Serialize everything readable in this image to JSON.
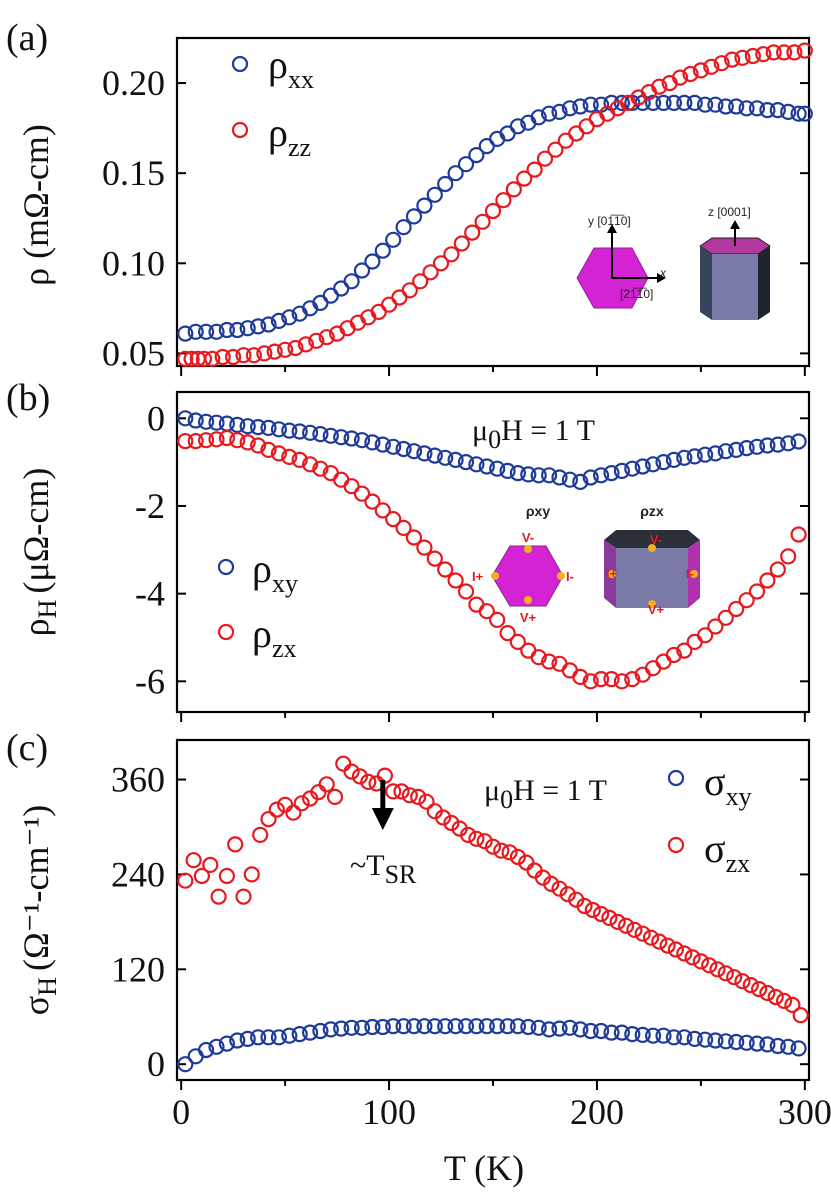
{
  "colors": {
    "blue": "#1f3b9a",
    "red": "#e8191e",
    "magenta": "#d323d3",
    "slate": "#7a7aa8"
  },
  "panel_labels": {
    "a": "(a)",
    "b": "(b)",
    "c": "(c)"
  },
  "xaxis": {
    "label": "T (K)",
    "ticks": [
      "0",
      "100",
      "200",
      "300"
    ]
  },
  "panel_a": {
    "ylabel": "ρ (mΩ-cm)",
    "ticks": [
      "0.05",
      "0.10",
      "0.15",
      "0.20"
    ],
    "legend": [
      {
        "main": "ρ",
        "sub": "xx"
      },
      {
        "main": "ρ",
        "sub": "zz"
      }
    ],
    "inset": {
      "y_axis": "y [01̅1̅0]",
      "x_axis": "x",
      "x_dir": "[21̅1̅0]",
      "z_axis": "z [0001]"
    }
  },
  "panel_b": {
    "ylabel_main": "ρ",
    "ylabel_sub": "H",
    "ylabel_unit": "(μΩ-cm)",
    "ticks": [
      "0",
      "-2",
      "-4",
      "-6"
    ],
    "field": {
      "pre": "μ",
      "sub": "0",
      "post": "H = 1 T"
    },
    "legend": [
      {
        "main": "ρ",
        "sub": "xy"
      },
      {
        "main": "ρ",
        "sub": "zx"
      }
    ],
    "inset": {
      "title_xy": "ρxy",
      "title_zx": "ρzx",
      "v_minus": "V-",
      "v_plus": "V+",
      "i_plus": "I+",
      "i_minus": "I-"
    }
  },
  "panel_c": {
    "ylabel_main": "σ",
    "ylabel_sub": "H",
    "ylabel_unit": "(Ω⁻¹-cm⁻¹)",
    "ticks": [
      "0",
      "120",
      "240",
      "360"
    ],
    "field": {
      "pre": "μ",
      "sub": "0",
      "post": "H = 1 T"
    },
    "legend": [
      {
        "main": "σ",
        "sub": "xy"
      },
      {
        "main": "σ",
        "sub": "zx"
      }
    ],
    "annotation": {
      "main": "~T",
      "sub": "SR",
      "arrow_at_T": 97
    }
  },
  "chart_data": [
    {
      "type": "scatter",
      "panel": "a",
      "ylabel": "ρ (mΩ-cm)",
      "xlabel": "T (K)",
      "xlim": [
        -2,
        302
      ],
      "ylim": [
        0.043,
        0.225
      ],
      "series": [
        {
          "name": "ρxx",
          "x": [
            2,
            7,
            12,
            17,
            22,
            27,
            32,
            37,
            42,
            47,
            52,
            57,
            62,
            67,
            72,
            77,
            82,
            87,
            92,
            97,
            102,
            107,
            112,
            117,
            122,
            127,
            132,
            137,
            142,
            147,
            152,
            157,
            162,
            167,
            172,
            177,
            182,
            187,
            192,
            197,
            202,
            207,
            212,
            217,
            222,
            227,
            232,
            237,
            242,
            247,
            252,
            257,
            262,
            267,
            272,
            277,
            282,
            287,
            292,
            297,
            300
          ],
          "values": [
            0.061,
            0.062,
            0.062,
            0.062,
            0.063,
            0.063,
            0.064,
            0.065,
            0.066,
            0.068,
            0.07,
            0.072,
            0.075,
            0.078,
            0.082,
            0.086,
            0.09,
            0.096,
            0.101,
            0.107,
            0.113,
            0.12,
            0.126,
            0.132,
            0.138,
            0.144,
            0.15,
            0.155,
            0.16,
            0.165,
            0.169,
            0.172,
            0.176,
            0.178,
            0.181,
            0.183,
            0.184,
            0.186,
            0.187,
            0.188,
            0.188,
            0.189,
            0.189,
            0.189,
            0.189,
            0.189,
            0.189,
            0.189,
            0.189,
            0.189,
            0.188,
            0.188,
            0.187,
            0.187,
            0.186,
            0.186,
            0.185,
            0.185,
            0.184,
            0.183,
            0.183
          ]
        },
        {
          "name": "ρzz",
          "x": [
            2,
            5,
            8,
            11,
            15,
            20,
            25,
            30,
            35,
            40,
            45,
            50,
            55,
            60,
            65,
            70,
            75,
            80,
            85,
            90,
            95,
            100,
            105,
            110,
            115,
            120,
            125,
            130,
            135,
            140,
            145,
            150,
            155,
            160,
            165,
            170,
            175,
            180,
            185,
            190,
            195,
            200,
            205,
            210,
            215,
            220,
            225,
            230,
            235,
            240,
            245,
            250,
            255,
            260,
            265,
            270,
            275,
            280,
            285,
            290,
            295,
            300
          ],
          "values": [
            0.047,
            0.047,
            0.047,
            0.047,
            0.047,
            0.048,
            0.048,
            0.049,
            0.049,
            0.05,
            0.051,
            0.052,
            0.053,
            0.055,
            0.057,
            0.059,
            0.061,
            0.064,
            0.067,
            0.07,
            0.073,
            0.077,
            0.081,
            0.085,
            0.09,
            0.095,
            0.1,
            0.105,
            0.111,
            0.117,
            0.123,
            0.129,
            0.135,
            0.141,
            0.147,
            0.152,
            0.158,
            0.163,
            0.168,
            0.172,
            0.176,
            0.18,
            0.183,
            0.186,
            0.189,
            0.192,
            0.195,
            0.198,
            0.2,
            0.203,
            0.205,
            0.207,
            0.209,
            0.211,
            0.213,
            0.214,
            0.215,
            0.216,
            0.217,
            0.217,
            0.217,
            0.218
          ]
        }
      ]
    },
    {
      "type": "scatter",
      "panel": "b",
      "ylabel": "ρH (μΩ-cm)",
      "xlabel": "T (K)",
      "xlim": [
        -2,
        302
      ],
      "ylim": [
        -6.7,
        0.6
      ],
      "series": [
        {
          "name": "ρxy",
          "x": [
            2,
            7,
            12,
            17,
            22,
            27,
            32,
            37,
            42,
            47,
            52,
            57,
            62,
            67,
            72,
            77,
            82,
            87,
            92,
            97,
            102,
            107,
            112,
            117,
            122,
            127,
            132,
            137,
            142,
            147,
            152,
            157,
            162,
            167,
            172,
            177,
            182,
            187,
            192,
            197,
            202,
            207,
            212,
            217,
            222,
            227,
            232,
            237,
            242,
            247,
            252,
            257,
            262,
            267,
            272,
            277,
            282,
            287,
            292,
            297
          ],
          "values": [
            0.0,
            -0.05,
            -0.08,
            -0.1,
            -0.12,
            -0.15,
            -0.18,
            -0.2,
            -0.22,
            -0.25,
            -0.28,
            -0.3,
            -0.33,
            -0.36,
            -0.4,
            -0.43,
            -0.46,
            -0.5,
            -0.55,
            -0.6,
            -0.65,
            -0.7,
            -0.75,
            -0.8,
            -0.85,
            -0.9,
            -0.95,
            -1.0,
            -1.05,
            -1.1,
            -1.15,
            -1.2,
            -1.25,
            -1.28,
            -1.3,
            -1.3,
            -1.35,
            -1.4,
            -1.45,
            -1.35,
            -1.3,
            -1.25,
            -1.2,
            -1.15,
            -1.1,
            -1.05,
            -1.0,
            -0.95,
            -0.9,
            -0.87,
            -0.83,
            -0.8,
            -0.75,
            -0.72,
            -0.68,
            -0.65,
            -0.62,
            -0.6,
            -0.57,
            -0.53
          ]
        },
        {
          "name": "ρzx",
          "x": [
            2,
            7,
            12,
            17,
            22,
            27,
            32,
            37,
            42,
            47,
            52,
            57,
            62,
            67,
            72,
            77,
            82,
            87,
            92,
            97,
            102,
            107,
            112,
            117,
            122,
            127,
            132,
            137,
            142,
            147,
            152,
            157,
            162,
            167,
            172,
            177,
            182,
            187,
            192,
            197,
            202,
            207,
            212,
            217,
            222,
            227,
            232,
            237,
            242,
            247,
            252,
            257,
            262,
            267,
            272,
            277,
            282,
            287,
            292,
            297
          ],
          "values": [
            -0.52,
            -0.52,
            -0.5,
            -0.48,
            -0.45,
            -0.5,
            -0.55,
            -0.62,
            -0.72,
            -0.8,
            -0.88,
            -0.95,
            -1.05,
            -1.15,
            -1.25,
            -1.4,
            -1.55,
            -1.72,
            -1.9,
            -2.1,
            -2.3,
            -2.5,
            -2.72,
            -2.95,
            -3.2,
            -3.45,
            -3.7,
            -3.95,
            -4.25,
            -4.4,
            -4.6,
            -4.9,
            -5.1,
            -5.3,
            -5.45,
            -5.55,
            -5.6,
            -5.75,
            -5.9,
            -6.0,
            -5.95,
            -5.95,
            -6.0,
            -5.95,
            -5.85,
            -5.7,
            -5.55,
            -5.4,
            -5.3,
            -5.1,
            -4.95,
            -4.75,
            -4.55,
            -4.35,
            -4.15,
            -3.95,
            -3.7,
            -3.45,
            -3.15,
            -2.65
          ]
        }
      ]
    },
    {
      "type": "scatter",
      "panel": "c",
      "ylabel": "σH (Ω⁻¹-cm⁻¹)",
      "xlabel": "T (K)",
      "xlim": [
        -2,
        302
      ],
      "ylim": [
        -20,
        410
      ],
      "series": [
        {
          "name": "σxy",
          "x": [
            2,
            7,
            12,
            17,
            22,
            27,
            32,
            37,
            42,
            47,
            52,
            57,
            62,
            67,
            72,
            77,
            82,
            87,
            92,
            97,
            102,
            107,
            112,
            117,
            122,
            127,
            132,
            137,
            142,
            147,
            152,
            157,
            162,
            167,
            172,
            177,
            182,
            187,
            192,
            197,
            202,
            207,
            212,
            217,
            222,
            227,
            232,
            237,
            242,
            247,
            252,
            257,
            262,
            267,
            272,
            277,
            282,
            287,
            292,
            297
          ],
          "values": [
            0,
            10,
            18,
            22,
            26,
            30,
            32,
            34,
            34,
            34,
            36,
            38,
            40,
            42,
            44,
            45,
            46,
            46,
            47,
            47,
            48,
            48,
            48,
            48,
            48,
            48,
            48,
            48,
            48,
            48,
            48,
            48,
            48,
            47,
            46,
            44,
            45,
            46,
            44,
            42,
            42,
            40,
            40,
            38,
            37,
            36,
            36,
            34,
            34,
            32,
            31,
            30,
            29,
            28,
            27,
            26,
            25,
            23,
            22,
            20
          ]
        },
        {
          "name": "σzx",
          "x": [
            2,
            6,
            10,
            14,
            18,
            22,
            26,
            30,
            34,
            38,
            42,
            46,
            50,
            54,
            58,
            62,
            66,
            70,
            74,
            78,
            82,
            86,
            90,
            94,
            98,
            102,
            106,
            110,
            114,
            118,
            122,
            126,
            130,
            134,
            138,
            142,
            146,
            150,
            154,
            158,
            162,
            166,
            170,
            174,
            178,
            182,
            186,
            190,
            194,
            198,
            202,
            206,
            210,
            214,
            218,
            222,
            226,
            230,
            234,
            238,
            242,
            246,
            250,
            254,
            258,
            262,
            266,
            270,
            274,
            278,
            282,
            286,
            290,
            294,
            298
          ],
          "values": [
            232,
            258,
            238,
            252,
            212,
            238,
            278,
            212,
            240,
            290,
            310,
            322,
            328,
            318,
            330,
            336,
            344,
            354,
            338,
            380,
            370,
            364,
            357,
            355,
            365,
            345,
            345,
            340,
            338,
            332,
            320,
            312,
            305,
            298,
            290,
            285,
            282,
            275,
            270,
            268,
            262,
            255,
            245,
            236,
            228,
            222,
            215,
            208,
            200,
            195,
            190,
            185,
            180,
            175,
            170,
            165,
            160,
            155,
            150,
            145,
            140,
            135,
            130,
            125,
            120,
            115,
            110,
            105,
            100,
            95,
            90,
            85,
            80,
            75,
            62
          ]
        }
      ]
    }
  ]
}
